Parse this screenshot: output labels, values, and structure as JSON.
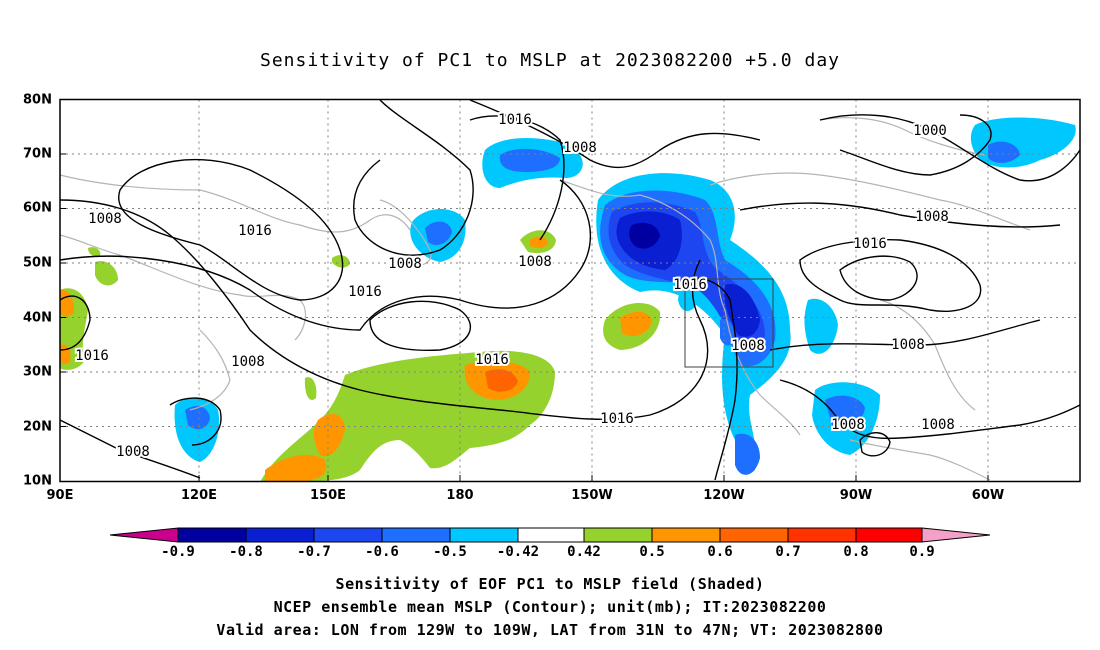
{
  "title": "Sensitivity of PC1 to MSLP at 2023082200 +5.0 day",
  "map": {
    "lon_range": [
      "90E",
      "310E"
    ],
    "lat_range": [
      "10N",
      "80N"
    ],
    "lat_labels": [
      "80N",
      "70N",
      "60N",
      "50N",
      "40N",
      "30N",
      "20N",
      "10N"
    ],
    "lon_labels": [
      "90E",
      "120E",
      "150E",
      "180",
      "150W",
      "120W",
      "90W",
      "60W"
    ],
    "contour_labels": [
      "1016",
      "1008",
      "1000",
      "1008",
      "1016",
      "1008",
      "1008",
      "1016",
      "1016",
      "1008",
      "1016",
      "1016",
      "1008",
      "1008",
      "1008",
      "1008",
      "1008",
      "1016",
      "1008"
    ],
    "valid_box": {
      "lon_from": "129W",
      "lon_to": "109W",
      "lat_from": "31N",
      "lat_to": "47N"
    }
  },
  "colorbar": {
    "labels": [
      "-0.9",
      "-0.8",
      "-0.7",
      "-0.6",
      "-0.5",
      "-0.42",
      "0.42",
      "0.5",
      "0.6",
      "0.7",
      "0.8",
      "0.9"
    ],
    "colors": {
      "neg_extend": "#c8008c",
      "n09": "#0000a0",
      "n08": "#0a1ed2",
      "n07": "#1e46f0",
      "n06": "#1e6eff",
      "n05": "#00c8ff",
      "neutral": "#ffffff",
      "p05": "#96d22d",
      "p06": "#ff9600",
      "p07": "#ff6400",
      "p08": "#ff3200",
      "p09": "#ff0000",
      "pos_extend": "#f5a0c8"
    }
  },
  "captions": [
    "Sensitivity of EOF PC1 to MSLP field (Shaded)",
    "NCEP ensemble mean MSLP (Contour); unit(mb); IT:2023082200",
    "Valid area: LON from 129W to 109W, LAT from 31N to 47N; VT: 2023082800"
  ]
}
